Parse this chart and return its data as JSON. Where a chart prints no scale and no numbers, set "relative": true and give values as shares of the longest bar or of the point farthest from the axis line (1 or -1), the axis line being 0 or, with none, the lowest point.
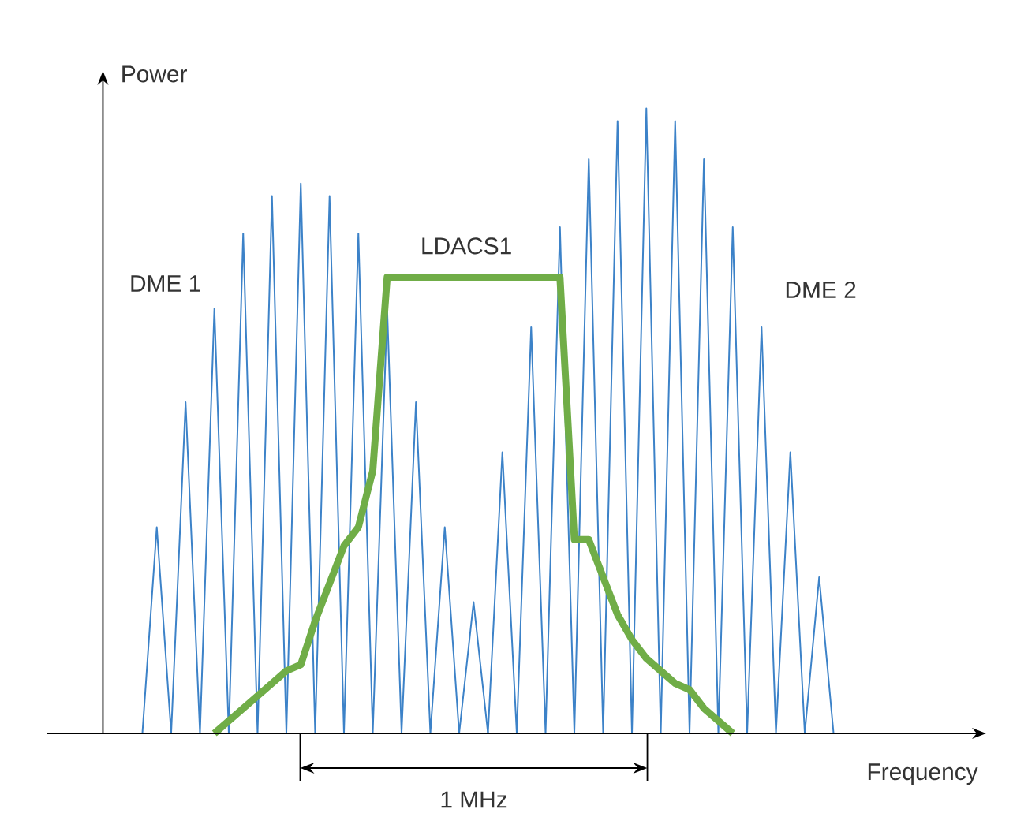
{
  "chart_data": {
    "type": "line",
    "relative": true,
    "xlabel": "Frequency",
    "ylabel": "Power",
    "annotations": [
      "1 MHz"
    ],
    "categories": [
      null,
      null,
      null,
      null,
      null,
      null,
      null,
      null,
      null,
      null,
      null,
      null,
      null,
      null,
      null,
      null,
      null,
      null,
      null,
      null,
      null,
      null,
      null,
      null,
      null,
      null,
      null,
      null,
      null,
      null,
      null,
      null,
      null,
      null,
      null,
      null,
      null,
      null,
      null,
      null,
      null,
      null,
      null,
      null,
      null,
      null,
      null,
      null,
      null
    ],
    "series": [
      {
        "name": "DME 1",
        "color": "#3c82c8",
        "values": [
          0,
          0.33,
          0,
          0.53,
          0,
          0.68,
          0,
          0.8,
          0,
          0.86,
          0,
          0.88,
          0,
          0.86,
          0,
          0.8,
          0,
          0.68,
          0,
          0.53,
          0,
          0.33,
          0,
          0.21,
          0,
          null,
          null,
          null,
          null,
          null,
          null,
          null,
          null,
          null,
          null,
          null,
          null,
          null,
          null,
          null,
          null,
          null,
          null,
          null,
          null,
          null,
          null,
          null,
          null
        ]
      },
      {
        "name": "DME 2",
        "color": "#3c82c8",
        "values": [
          null,
          null,
          null,
          null,
          null,
          null,
          null,
          null,
          null,
          null,
          null,
          null,
          null,
          null,
          null,
          null,
          null,
          null,
          null,
          null,
          null,
          null,
          null,
          null,
          0,
          0.45,
          0,
          0.65,
          0,
          0.81,
          0,
          0.92,
          0,
          0.98,
          0,
          1,
          0,
          0.98,
          0,
          0.92,
          0,
          0.81,
          0,
          0.65,
          0,
          0.45,
          0,
          0.25,
          0
        ]
      },
      {
        "name": "LDACS1",
        "color": "#70ad47",
        "values": [
          null,
          null,
          null,
          null,
          null,
          0,
          0.02,
          0.04,
          0.06,
          0.08,
          0.1,
          0.11,
          0.18,
          0.24,
          0.3,
          0.33,
          0.42,
          0.73,
          0.73,
          0.73,
          0.73,
          0.73,
          0.73,
          0.73,
          0.73,
          0.73,
          0.73,
          0.73,
          0.73,
          0.73,
          0.31,
          0.31,
          0.25,
          0.19,
          0.15,
          0.12,
          0.1,
          0.08,
          0.07,
          0.04,
          0.02,
          0,
          null,
          null,
          null,
          null,
          null,
          null,
          null
        ]
      }
    ]
  }
}
